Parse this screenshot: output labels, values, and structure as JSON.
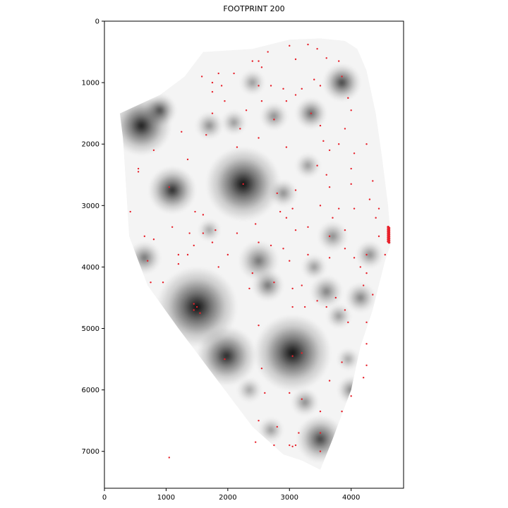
{
  "chart_data": {
    "type": "heatmap",
    "title": "FOOTPRINT 200",
    "xlabel": "",
    "ylabel": "",
    "xlim": [
      0,
      4850
    ],
    "ylim": [
      7600,
      0
    ],
    "x_ticks": [
      0,
      1000,
      2000,
      3000,
      4000
    ],
    "y_ticks": [
      0,
      1000,
      2000,
      3000,
      4000,
      5000,
      6000,
      7000
    ],
    "grid": false,
    "colormap": "greys",
    "point_color": "#e8202a",
    "region_outline": [
      [
        1600,
        500
      ],
      [
        2400,
        450
      ],
      [
        3000,
        300
      ],
      [
        3500,
        280
      ],
      [
        3900,
        320
      ],
      [
        4100,
        450
      ],
      [
        4250,
        800
      ],
      [
        4400,
        1500
      ],
      [
        4500,
        2200
      ],
      [
        4600,
        3000
      ],
      [
        4650,
        3600
      ],
      [
        4550,
        3900
      ],
      [
        4350,
        4700
      ],
      [
        4150,
        5300
      ],
      [
        4000,
        6000
      ],
      [
        3700,
        6800
      ],
      [
        3500,
        7300
      ],
      [
        3200,
        7150
      ],
      [
        2900,
        7050
      ],
      [
        2400,
        6600
      ],
      [
        1800,
        5800
      ],
      [
        1200,
        5000
      ],
      [
        700,
        4300
      ],
      [
        400,
        3500
      ],
      [
        350,
        2700
      ],
      [
        300,
        1900
      ],
      [
        250,
        1500
      ],
      [
        900,
        1200
      ],
      [
        1300,
        900
      ]
    ],
    "dark_spots": [
      {
        "x": 2250,
        "y": 2650,
        "r": 600,
        "v": 0.95
      },
      {
        "x": 1500,
        "y": 4650,
        "r": 650,
        "v": 0.95
      },
      {
        "x": 3050,
        "y": 5400,
        "r": 620,
        "v": 0.95
      },
      {
        "x": 1100,
        "y": 2750,
        "r": 380,
        "v": 0.85
      },
      {
        "x": 600,
        "y": 1700,
        "r": 480,
        "v": 0.9
      },
      {
        "x": 900,
        "y": 1450,
        "r": 260,
        "v": 0.7
      },
      {
        "x": 1980,
        "y": 5450,
        "r": 480,
        "v": 0.85
      },
      {
        "x": 3500,
        "y": 6800,
        "r": 380,
        "v": 0.75
      },
      {
        "x": 3850,
        "y": 1000,
        "r": 300,
        "v": 0.75
      },
      {
        "x": 3350,
        "y": 1500,
        "r": 250,
        "v": 0.6
      },
      {
        "x": 2500,
        "y": 3900,
        "r": 320,
        "v": 0.55
      },
      {
        "x": 3600,
        "y": 4400,
        "r": 260,
        "v": 0.5
      },
      {
        "x": 2650,
        "y": 4300,
        "r": 250,
        "v": 0.55
      },
      {
        "x": 650,
        "y": 3850,
        "r": 260,
        "v": 0.55
      },
      {
        "x": 4000,
        "y": 6000,
        "r": 220,
        "v": 0.5
      },
      {
        "x": 1700,
        "y": 1700,
        "r": 220,
        "v": 0.45
      },
      {
        "x": 2100,
        "y": 1650,
        "r": 200,
        "v": 0.4
      },
      {
        "x": 2750,
        "y": 1550,
        "r": 220,
        "v": 0.45
      },
      {
        "x": 4150,
        "y": 4500,
        "r": 240,
        "v": 0.5
      },
      {
        "x": 3700,
        "y": 3500,
        "r": 240,
        "v": 0.45
      },
      {
        "x": 4300,
        "y": 3800,
        "r": 220,
        "v": 0.45
      },
      {
        "x": 2900,
        "y": 2800,
        "r": 220,
        "v": 0.45
      },
      {
        "x": 3300,
        "y": 2350,
        "r": 200,
        "v": 0.4
      },
      {
        "x": 2400,
        "y": 1000,
        "r": 200,
        "v": 0.4
      },
      {
        "x": 3250,
        "y": 6200,
        "r": 220,
        "v": 0.45
      },
      {
        "x": 2700,
        "y": 6650,
        "r": 200,
        "v": 0.4
      },
      {
        "x": 2350,
        "y": 6000,
        "r": 200,
        "v": 0.35
      },
      {
        "x": 3800,
        "y": 4800,
        "r": 200,
        "v": 0.4
      },
      {
        "x": 1700,
        "y": 3400,
        "r": 180,
        "v": 0.35
      },
      {
        "x": 3400,
        "y": 4000,
        "r": 200,
        "v": 0.4
      },
      {
        "x": 3950,
        "y": 5500,
        "r": 180,
        "v": 0.35
      }
    ],
    "points": [
      [
        3000,
        400
      ],
      [
        3300,
        380
      ],
      [
        3450,
        450
      ],
      [
        2650,
        500
      ],
      [
        3100,
        620
      ],
      [
        3600,
        600
      ],
      [
        3800,
        650
      ],
      [
        2400,
        650
      ],
      [
        2500,
        650
      ],
      [
        2550,
        750
      ],
      [
        1580,
        900
      ],
      [
        1750,
        1000
      ],
      [
        1900,
        1050
      ],
      [
        2100,
        850
      ],
      [
        1850,
        850
      ],
      [
        1750,
        1150
      ],
      [
        3850,
        900
      ],
      [
        2500,
        1050
      ],
      [
        2700,
        1050
      ],
      [
        2900,
        1100
      ],
      [
        3500,
        1050
      ],
      [
        3200,
        1100
      ],
      [
        3400,
        950
      ],
      [
        2550,
        1300
      ],
      [
        2950,
        1300
      ],
      [
        3100,
        1200
      ],
      [
        3950,
        1250
      ],
      [
        4000,
        1450
      ],
      [
        2300,
        1450
      ],
      [
        1950,
        1300
      ],
      [
        1750,
        1500
      ],
      [
        1650,
        1850
      ],
      [
        1250,
        1800
      ],
      [
        2200,
        1750
      ],
      [
        2750,
        1600
      ],
      [
        3350,
        1500
      ],
      [
        3500,
        1700
      ],
      [
        3900,
        1750
      ],
      [
        2500,
        1900
      ],
      [
        2950,
        2050
      ],
      [
        3550,
        1950
      ],
      [
        3650,
        2100
      ],
      [
        3800,
        2000
      ],
      [
        4050,
        2150
      ],
      [
        4250,
        2000
      ],
      [
        2150,
        2050
      ],
      [
        1350,
        2250
      ],
      [
        800,
        2100
      ],
      [
        550,
        2400
      ],
      [
        550,
        2450
      ],
      [
        1050,
        2700
      ],
      [
        2250,
        2650
      ],
      [
        2800,
        2800
      ],
      [
        3100,
        2750
      ],
      [
        3450,
        2350
      ],
      [
        3600,
        2500
      ],
      [
        3650,
        2700
      ],
      [
        4000,
        2400
      ],
      [
        4000,
        2650
      ],
      [
        4350,
        2600
      ],
      [
        4300,
        2900
      ],
      [
        3500,
        3000
      ],
      [
        3800,
        3050
      ],
      [
        4050,
        3050
      ],
      [
        4450,
        3050
      ],
      [
        4400,
        3200
      ],
      [
        420,
        3100
      ],
      [
        1470,
        3100
      ],
      [
        1600,
        3150
      ],
      [
        1100,
        3350
      ],
      [
        1380,
        3450
      ],
      [
        1600,
        3450
      ],
      [
        1800,
        3400
      ],
      [
        2150,
        3450
      ],
      [
        2450,
        3300
      ],
      [
        2850,
        3100
      ],
      [
        2950,
        3200
      ],
      [
        3050,
        3050
      ],
      [
        3100,
        3400
      ],
      [
        3300,
        3350
      ],
      [
        3650,
        3500
      ],
      [
        3700,
        3200
      ],
      [
        3900,
        3400
      ],
      [
        4450,
        3500
      ],
      [
        4550,
        3800
      ],
      [
        650,
        3500
      ],
      [
        800,
        3550
      ],
      [
        1450,
        3650
      ],
      [
        1750,
        3600
      ],
      [
        2000,
        3800
      ],
      [
        2500,
        3600
      ],
      [
        2700,
        3650
      ],
      [
        2900,
        3700
      ],
      [
        3000,
        3900
      ],
      [
        3300,
        3800
      ],
      [
        3650,
        3850
      ],
      [
        3900,
        3700
      ],
      [
        4050,
        3850
      ],
      [
        4250,
        3800
      ],
      [
        4150,
        4000
      ],
      [
        4250,
        4100
      ],
      [
        700,
        3900
      ],
      [
        1200,
        3800
      ],
      [
        1350,
        3800
      ],
      [
        1200,
        3950
      ],
      [
        1850,
        4000
      ],
      [
        2400,
        4100
      ],
      [
        2350,
        4350
      ],
      [
        2750,
        4250
      ],
      [
        3050,
        4350
      ],
      [
        3200,
        4300
      ],
      [
        4200,
        4300
      ],
      [
        4350,
        4450
      ],
      [
        750,
        4250
      ],
      [
        950,
        4250
      ],
      [
        1450,
        4600
      ],
      [
        1500,
        4650
      ],
      [
        1450,
        4700
      ],
      [
        1550,
        4750
      ],
      [
        3050,
        4650
      ],
      [
        3250,
        4650
      ],
      [
        3450,
        4550
      ],
      [
        3600,
        4650
      ],
      [
        3750,
        4500
      ],
      [
        3900,
        4700
      ],
      [
        3950,
        4900
      ],
      [
        4250,
        4900
      ],
      [
        2500,
        4950
      ],
      [
        3200,
        5400
      ],
      [
        3050,
        5450
      ],
      [
        1950,
        5500
      ],
      [
        3850,
        5550
      ],
      [
        4250,
        5250
      ],
      [
        4250,
        5600
      ],
      [
        4200,
        5800
      ],
      [
        2550,
        5650
      ],
      [
        2600,
        6050
      ],
      [
        3000,
        6050
      ],
      [
        3200,
        6150
      ],
      [
        3650,
        5850
      ],
      [
        4000,
        6100
      ],
      [
        3500,
        6350
      ],
      [
        3850,
        6350
      ],
      [
        2500,
        6500
      ],
      [
        2800,
        6600
      ],
      [
        3150,
        6700
      ],
      [
        2450,
        6850
      ],
      [
        2750,
        6900
      ],
      [
        3000,
        6900
      ],
      [
        3100,
        6900
      ],
      [
        3500,
        6700
      ],
      [
        3500,
        7000
      ],
      [
        1050,
        7100
      ],
      [
        3050,
        6920
      ]
    ],
    "edge_cluster": {
      "x": 4600,
      "y_start": 3350,
      "y_end": 3600,
      "count": 16
    }
  }
}
